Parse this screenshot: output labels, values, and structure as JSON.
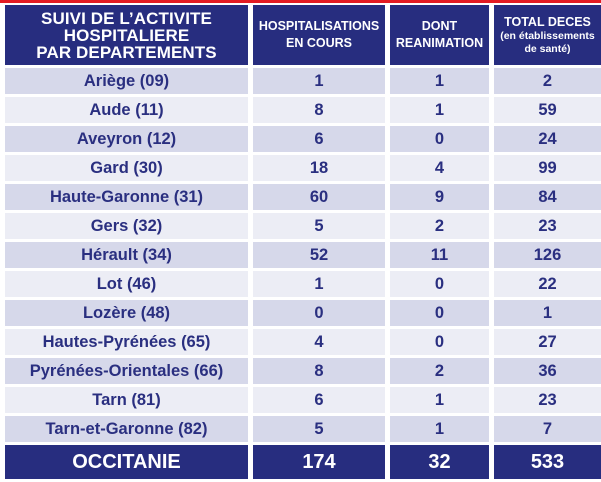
{
  "header": {
    "dept_title": [
      "SUIVI DE L’ACTIVITE",
      "HOSPITALIERE",
      "PAR DEPARTEMENTS"
    ],
    "col_hosp": [
      "HOSPITALISATIONS",
      "EN COURS"
    ],
    "col_rea": [
      "DONT",
      "REANIMATION"
    ],
    "col_deces": "TOTAL DECES",
    "col_deces_sub": [
      "(en établissements",
      "de santé)"
    ]
  },
  "rows": [
    {
      "dept": "Ariège (09)",
      "hosp": "1",
      "rea": "1",
      "deces": "2"
    },
    {
      "dept": "Aude (11)",
      "hosp": "8",
      "rea": "1",
      "deces": "59"
    },
    {
      "dept": "Aveyron (12)",
      "hosp": "6",
      "rea": "0",
      "deces": "24"
    },
    {
      "dept": "Gard (30)",
      "hosp": "18",
      "rea": "4",
      "deces": "99"
    },
    {
      "dept": "Haute-Garonne (31)",
      "hosp": "60",
      "rea": "9",
      "deces": "84"
    },
    {
      "dept": "Gers (32)",
      "hosp": "5",
      "rea": "2",
      "deces": "23"
    },
    {
      "dept": "Hérault (34)",
      "hosp": "52",
      "rea": "11",
      "deces": "126"
    },
    {
      "dept": "Lot (46)",
      "hosp": "1",
      "rea": "0",
      "deces": "22"
    },
    {
      "dept": "Lozère (48)",
      "hosp": "0",
      "rea": "0",
      "deces": "1"
    },
    {
      "dept": "Hautes-Pyrénées (65)",
      "hosp": "4",
      "rea": "0",
      "deces": "27"
    },
    {
      "dept": "Pyrénées-Orientales (66)",
      "hosp": "8",
      "rea": "2",
      "deces": "36"
    },
    {
      "dept": "Tarn (81)",
      "hosp": "6",
      "rea": "1",
      "deces": "23"
    },
    {
      "dept": "Tarn-et-Garonne (82)",
      "hosp": "5",
      "rea": "1",
      "deces": "7"
    }
  ],
  "total": {
    "label": "OCCITANIE",
    "hosp": "174",
    "rea": "32",
    "deces": "533"
  },
  "colors": {
    "header_bg": "#272d7f",
    "row_odd": "#d6d8ea",
    "row_even": "#ecedf5",
    "text": "#2a2f80",
    "accent_line": "#e31b23"
  }
}
